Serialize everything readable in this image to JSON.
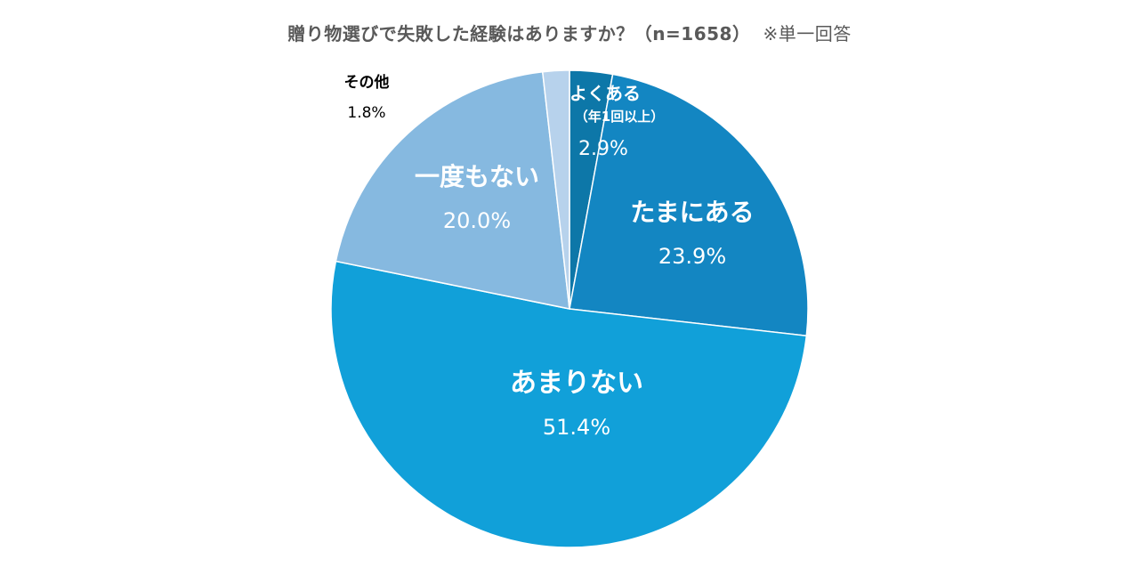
{
  "chart_data": {
    "type": "pie",
    "title": "贈り物選びで失敗した経験はありますか？（n=1658）",
    "note": "※単一回答",
    "slices": [
      {
        "label": "よくある",
        "sublabel": "（年1回以上）",
        "value": 2.9,
        "value_label": "2.9%",
        "color": "#0d77a8"
      },
      {
        "label": "たまにある",
        "sublabel": "",
        "value": 23.9,
        "value_label": "23.9%",
        "color": "#1386c2"
      },
      {
        "label": "あまりない",
        "sublabel": "",
        "value": 51.4,
        "value_label": "51.4%",
        "color": "#11a0d9"
      },
      {
        "label": "一度もない",
        "sublabel": "",
        "value": 20.0,
        "value_label": "20.0%",
        "color": "#86b9e0"
      },
      {
        "label": "その他",
        "sublabel": "",
        "value": 1.8,
        "value_label": "1.8%",
        "color": "#b7d2ec"
      }
    ],
    "start_angle_deg": 0,
    "direction": "clockwise"
  }
}
